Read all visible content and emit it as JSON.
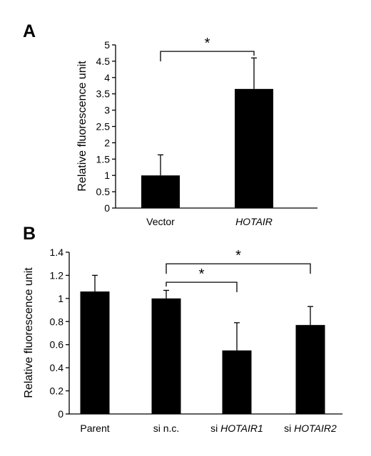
{
  "chart_data": [
    {
      "panel": "A",
      "type": "bar",
      "ylabel": "Relative fluorescence unit",
      "ylim": [
        0,
        5
      ],
      "yticks": [
        0,
        0.5,
        1,
        1.5,
        2,
        2.5,
        3,
        3.5,
        4,
        4.5,
        5
      ],
      "ytick_labels": [
        "0",
        "0.5",
        "1",
        "1.5",
        "2",
        "2.5",
        "3",
        "3.5",
        "4",
        "4.5",
        "5"
      ],
      "categories": [
        {
          "prefix": "",
          "italic": "",
          "text": "Vector"
        },
        {
          "prefix": "",
          "italic": "HOTAIR",
          "text": ""
        }
      ],
      "values": [
        1.0,
        3.65
      ],
      "errors": [
        0.63,
        0.95
      ],
      "significance": [
        {
          "from": 0,
          "to": 1,
          "y": 4.8,
          "label": "*"
        }
      ],
      "color": "#000000"
    },
    {
      "panel": "B",
      "type": "bar",
      "ylabel": "Relative fluorescence unit",
      "ylim": [
        0,
        1.4
      ],
      "yticks": [
        0,
        0.2,
        0.4,
        0.6,
        0.8,
        1.0,
        1.2,
        1.4
      ],
      "ytick_labels": [
        "0",
        "0.2",
        "0.4",
        "0.6",
        "0.8",
        "1",
        "1.2",
        "1.4"
      ],
      "categories": [
        {
          "prefix": "",
          "italic": "",
          "text": "Parent"
        },
        {
          "prefix": "",
          "italic": "",
          "text": "si n.c."
        },
        {
          "prefix": "si ",
          "italic": "HOTAIR1",
          "text": ""
        },
        {
          "prefix": "si ",
          "italic": "HOTAIR2",
          "text": ""
        }
      ],
      "values": [
        1.06,
        1.0,
        0.55,
        0.77
      ],
      "errors": [
        0.14,
        0.07,
        0.24,
        0.16
      ],
      "significance": [
        {
          "from": 1,
          "to": 2,
          "y": 1.14,
          "label": "*"
        },
        {
          "from": 1,
          "to": 3,
          "y": 1.3,
          "label": "*"
        }
      ],
      "color": "#000000"
    }
  ]
}
